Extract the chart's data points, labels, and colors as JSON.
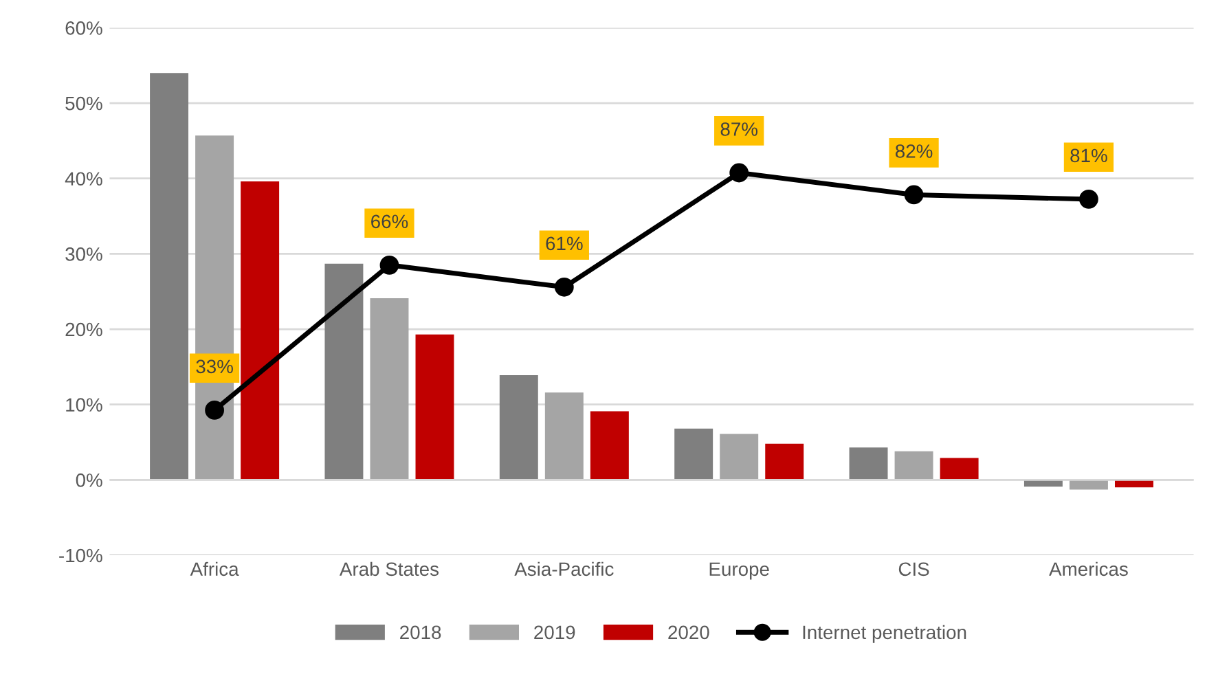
{
  "chart_data": {
    "type": "bar",
    "categories": [
      "Africa",
      "Arab States",
      "Asia-Pacific",
      "Europe",
      "CIS",
      "Americas"
    ],
    "series": [
      {
        "name": "2018",
        "color": "#7f7f7f",
        "values": [
          54,
          28.7,
          13.9,
          6.8,
          4.3,
          -0.9
        ]
      },
      {
        "name": "2019",
        "color": "#a5a5a5",
        "values": [
          45.7,
          24.1,
          11.6,
          6.1,
          3.8,
          -1.3
        ]
      },
      {
        "name": "2020",
        "color": "#c00000",
        "values": [
          39.6,
          19.3,
          9.1,
          4.8,
          2.9,
          -1.0
        ]
      },
      {
        "name": "Internet penetration",
        "type": "line",
        "axis": "y2",
        "color": "#000000",
        "marker": "circle",
        "values": [
          33,
          66,
          61,
          87,
          82,
          81
        ],
        "value_labels": [
          "33%",
          "66%",
          "61%",
          "87%",
          "82%",
          "81%"
        ]
      }
    ],
    "ylim": [
      -10,
      60
    ],
    "yticks": [
      {
        "value": -10,
        "label": "-10%"
      },
      {
        "value": 0,
        "label": "0%"
      },
      {
        "value": 10,
        "label": "10%"
      },
      {
        "value": 20,
        "label": "20%"
      },
      {
        "value": 30,
        "label": "30%"
      },
      {
        "value": 40,
        "label": "40%"
      },
      {
        "value": 50,
        "label": "50%"
      },
      {
        "value": 60,
        "label": "60%"
      }
    ],
    "y2lim": [
      0,
      120
    ],
    "grid": "y",
    "legend": "bottom"
  }
}
